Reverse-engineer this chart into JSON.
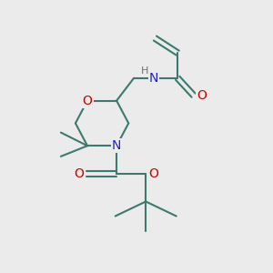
{
  "background_color": "#ebebeb",
  "bond_color": "#3d7a6e",
  "bond_width": 1.5,
  "atom_colors": {
    "O": "#cc0000",
    "N": "#2222cc",
    "C": "#3d7a6e",
    "H": "#707070"
  },
  "font_size": 9,
  "fig_size": [
    3.0,
    3.0
  ],
  "dpi": 100,
  "xlim": [
    0,
    10
  ],
  "ylim": [
    0,
    10
  ]
}
